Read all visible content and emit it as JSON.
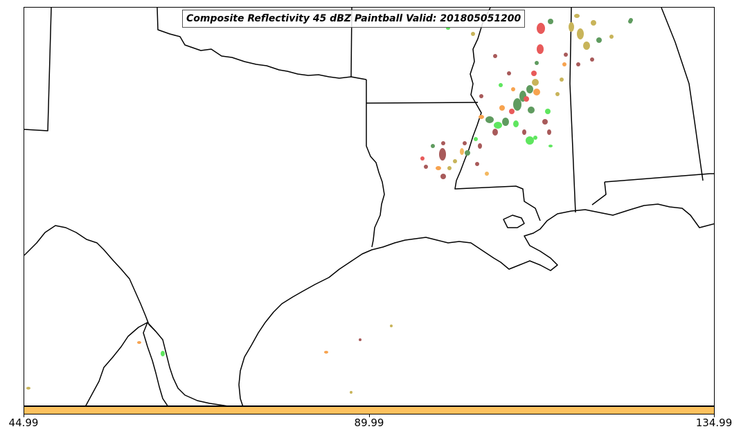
{
  "map": {
    "title": "Composite Reflectivity 45 dBZ Paintball Valid: 201805051200",
    "colors": {
      "boundary": "#000000",
      "frame": "#000000",
      "background": "#ffffff",
      "colorbar_fill": "#fdc15e",
      "member_palette": [
        "#5f9b5f",
        "#e85a5a",
        "#a85a5a",
        "#f7a34f",
        "#5fe65f",
        "#c8b45a",
        "#f4b860",
        "#8b5a5a"
      ]
    },
    "colorbar": {
      "ticks": [
        "44.99",
        "89.99",
        "134.99"
      ]
    }
  }
}
